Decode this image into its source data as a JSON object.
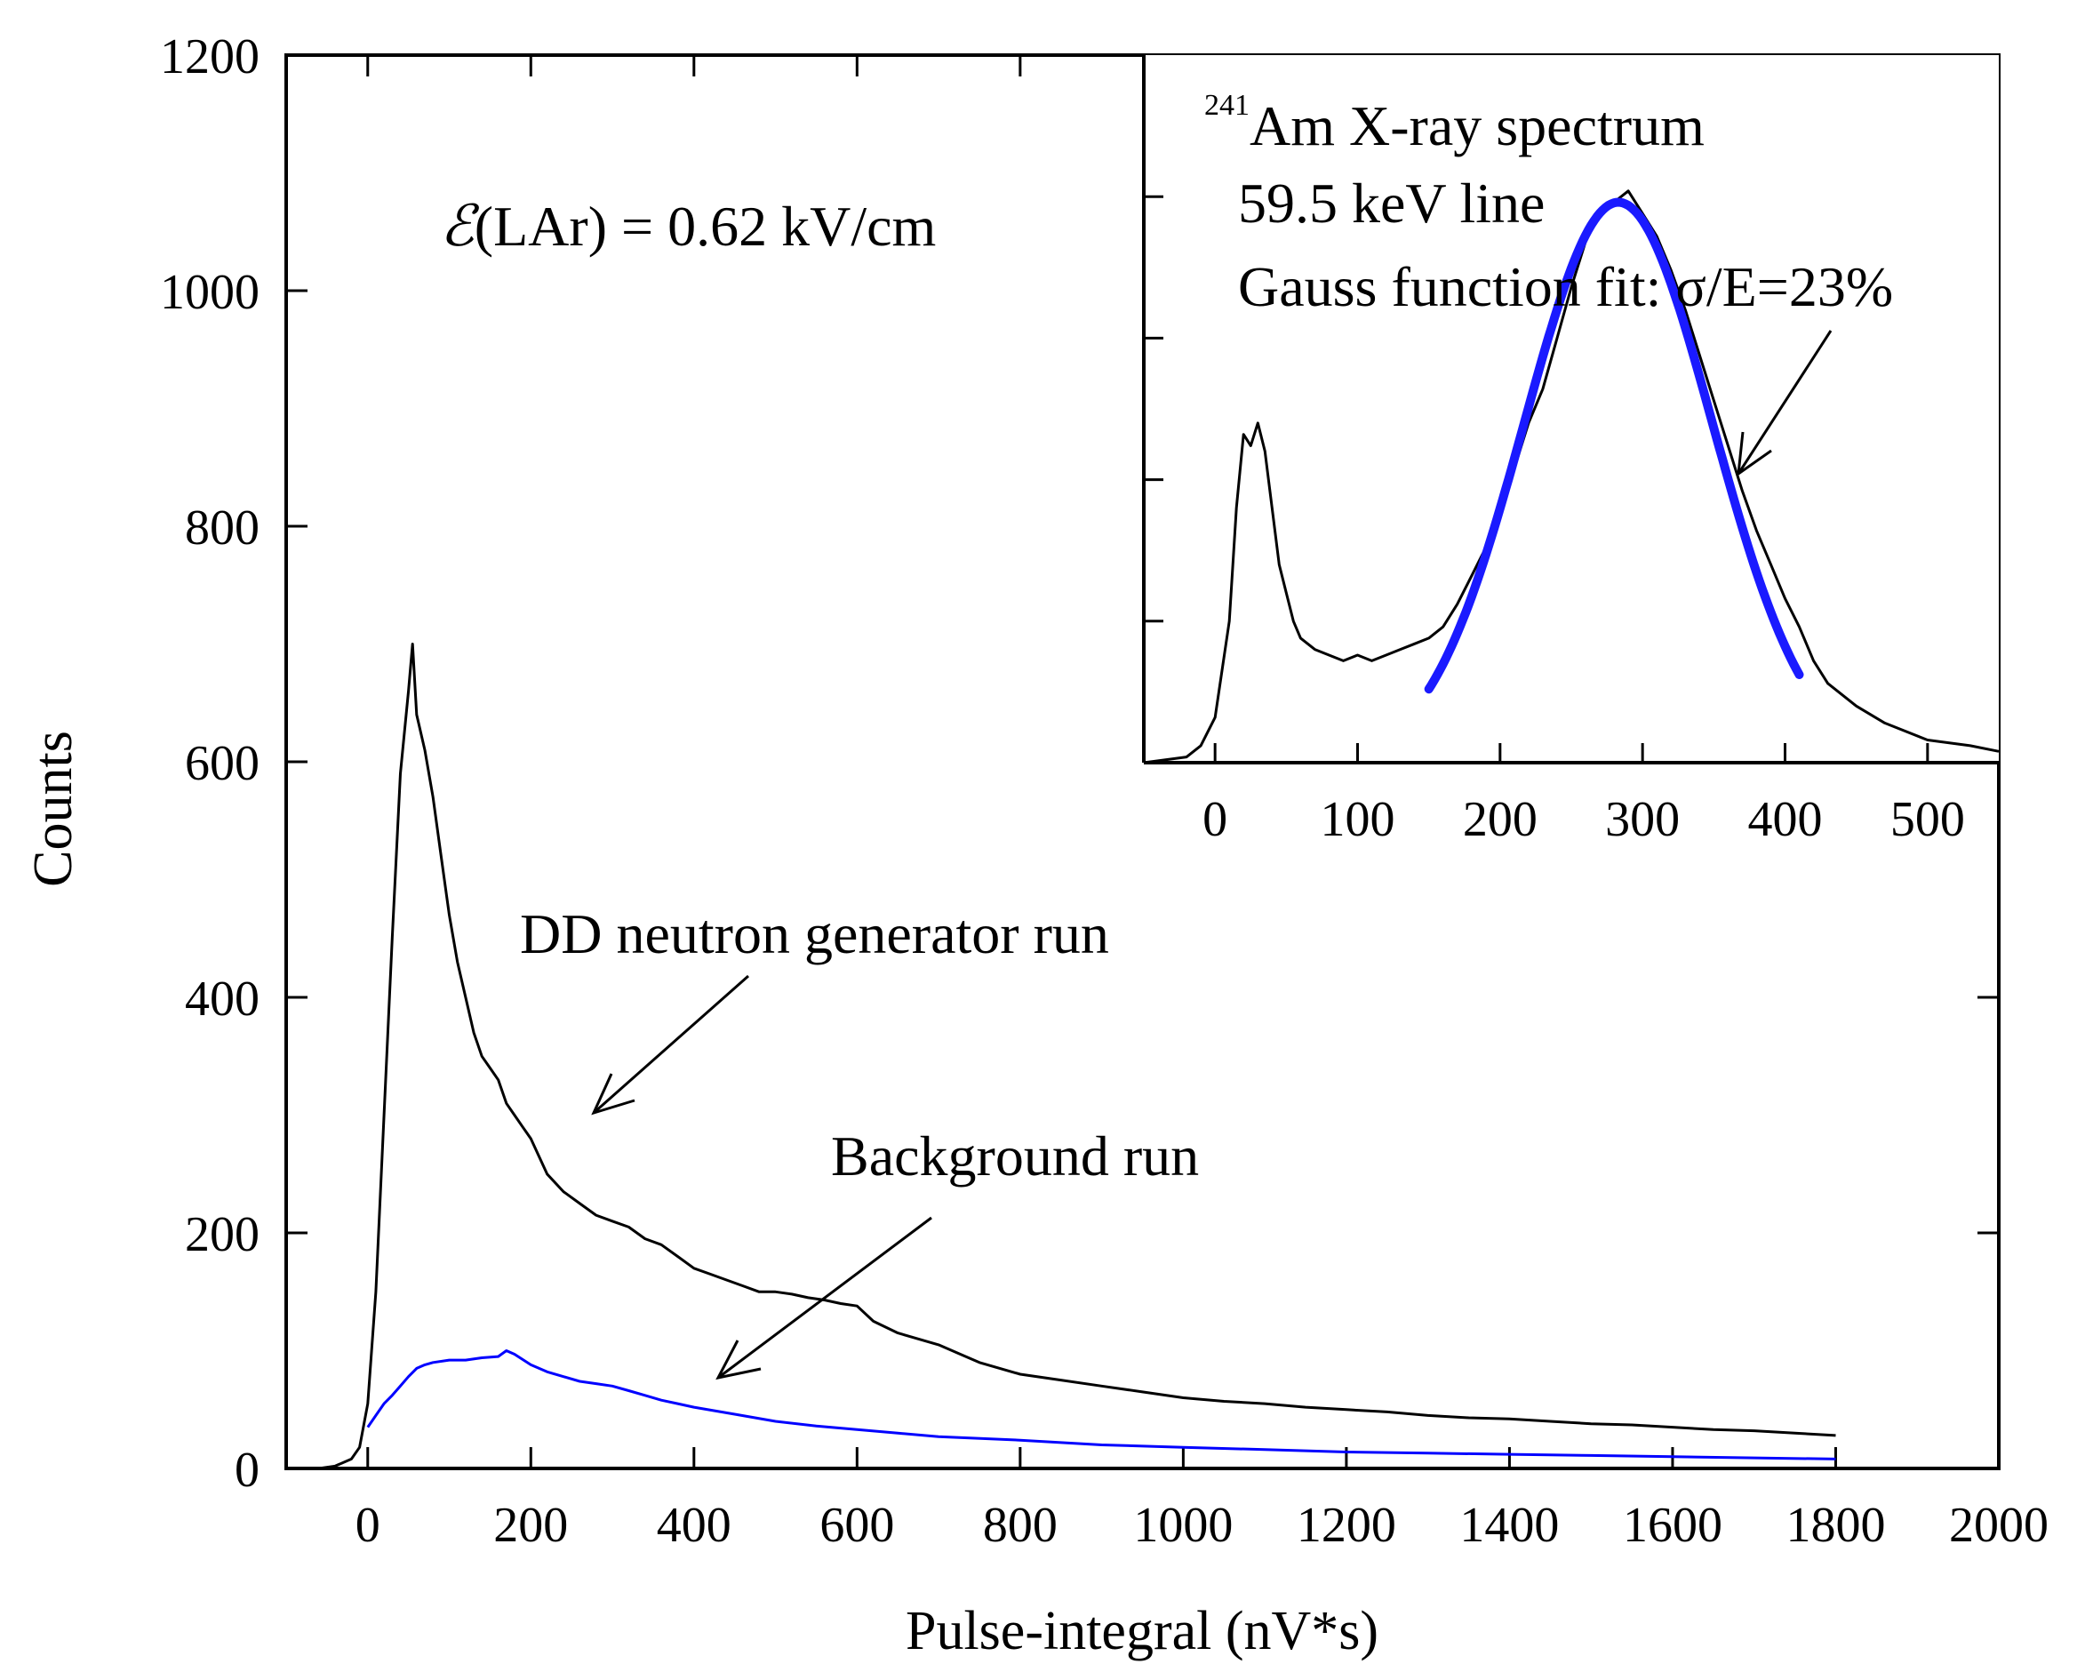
{
  "chart_data": [
    {
      "type": "line",
      "xlabel": "Pulse-integral (nV*s)",
      "ylabel": "Counts",
      "xlim": [
        -100,
        2000
      ],
      "ylim": [
        0,
        1200
      ],
      "x_ticks": [
        "0",
        "200",
        "400",
        "600",
        "800",
        "1000",
        "1200",
        "1400",
        "1600",
        "1800",
        "2000"
      ],
      "y_ticks": [
        "0",
        "200",
        "400",
        "600",
        "800",
        "1000",
        "1200"
      ],
      "grid": false,
      "field_label_prefix": "ℰ",
      "field_label": "(LAr) = 0.62 kV/cm",
      "series": [
        {
          "name": "DD neutron generator run",
          "color": "#000000",
          "x": [
            -100,
            -60,
            -40,
            -20,
            -10,
            0,
            10,
            20,
            30,
            40,
            50,
            55,
            60,
            70,
            80,
            90,
            100,
            110,
            120,
            130,
            140,
            150,
            160,
            170,
            180,
            190,
            200,
            220,
            240,
            260,
            280,
            300,
            320,
            340,
            360,
            380,
            400,
            420,
            440,
            460,
            480,
            500,
            520,
            540,
            560,
            580,
            600,
            620,
            650,
            700,
            750,
            800,
            850,
            900,
            950,
            1000,
            1050,
            1100,
            1150,
            1200,
            1250,
            1300,
            1350,
            1400,
            1450,
            1500,
            1550,
            1600,
            1650,
            1700,
            1750,
            1800
          ],
          "y": [
            0,
            0,
            2,
            8,
            18,
            55,
            150,
            300,
            450,
            590,
            660,
            700,
            640,
            610,
            570,
            520,
            470,
            430,
            400,
            370,
            350,
            340,
            330,
            310,
            300,
            290,
            280,
            250,
            235,
            225,
            215,
            210,
            205,
            195,
            190,
            180,
            170,
            165,
            160,
            155,
            150,
            150,
            148,
            145,
            143,
            140,
            138,
            125,
            115,
            105,
            90,
            80,
            75,
            70,
            65,
            60,
            57,
            55,
            52,
            50,
            48,
            45,
            43,
            42,
            40,
            38,
            37,
            35,
            33,
            32,
            30,
            28
          ]
        },
        {
          "name": "Background run",
          "color": "#0000ff",
          "x": [
            0,
            10,
            20,
            30,
            40,
            50,
            60,
            70,
            80,
            100,
            120,
            140,
            160,
            170,
            180,
            200,
            220,
            240,
            260,
            280,
            300,
            320,
            340,
            360,
            380,
            400,
            450,
            500,
            550,
            600,
            650,
            700,
            800,
            900,
            1000,
            1100,
            1200,
            1300,
            1400,
            1500,
            1600,
            1700,
            1800
          ],
          "y": [
            35,
            45,
            55,
            62,
            70,
            78,
            85,
            88,
            90,
            92,
            92,
            94,
            95,
            100,
            97,
            88,
            82,
            78,
            74,
            72,
            70,
            66,
            62,
            58,
            55,
            52,
            46,
            40,
            36,
            33,
            30,
            27,
            24,
            20,
            18,
            16,
            14,
            13,
            12,
            11,
            10,
            9,
            8
          ]
        }
      ],
      "annotations": [
        "DD neutron generator run",
        "Background run"
      ]
    },
    {
      "type": "line",
      "title_superscript": "241",
      "title": "Am X-ray spectrum",
      "subtitle": "59.5 keV line",
      "fit_label": "Gauss function fit: σ/E=23%",
      "xlim": [
        -50,
        550
      ],
      "x_ticks": [
        "0",
        "100",
        "200",
        "300",
        "400",
        "500"
      ],
      "grid": false,
      "series": [
        {
          "name": "241Am spectrum",
          "color": "#000000",
          "x": [
            -50,
            -20,
            -10,
            0,
            10,
            15,
            20,
            25,
            30,
            35,
            40,
            45,
            50,
            55,
            60,
            70,
            80,
            90,
            100,
            110,
            120,
            130,
            140,
            150,
            160,
            170,
            180,
            190,
            200,
            210,
            220,
            230,
            240,
            250,
            260,
            270,
            280,
            290,
            300,
            310,
            320,
            330,
            340,
            350,
            360,
            370,
            380,
            390,
            400,
            410,
            420,
            430,
            450,
            470,
            500,
            530,
            550
          ],
          "y": [
            0,
            1,
            3,
            8,
            25,
            45,
            58,
            56,
            60,
            55,
            45,
            35,
            30,
            25,
            22,
            20,
            19,
            18,
            19,
            18,
            19,
            20,
            21,
            22,
            24,
            28,
            33,
            38,
            45,
            52,
            60,
            66,
            75,
            84,
            92,
            97,
            99,
            101,
            97,
            93,
            87,
            80,
            72,
            64,
            56,
            48,
            41,
            35,
            29,
            24,
            18,
            14,
            10,
            7,
            4,
            3,
            2
          ]
        },
        {
          "name": "Gauss fit",
          "color": "#1a1aff",
          "type": "gaussian",
          "mean": 283,
          "sigma": 66,
          "peak": 99,
          "x_range": [
            150,
            410
          ]
        }
      ]
    }
  ]
}
